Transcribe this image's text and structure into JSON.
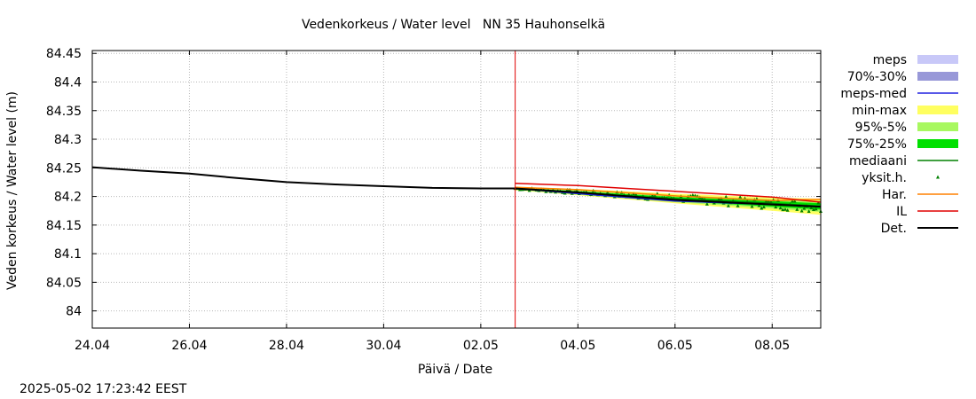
{
  "chart_data": {
    "type": "line",
    "title": "Vedenkorkeus / Water level   NN 35 Hauhonselkä",
    "xlabel": "Päivä / Date",
    "ylabel": "Veden korkeus / Water level (m)",
    "timestamp": "2025-05-02 17:23:42 EEST",
    "grid": true,
    "legend_position": "right",
    "xlim": [
      "2025-04-24",
      "2025-05-09"
    ],
    "ylim": [
      83.97,
      84.455
    ],
    "x_ticks": [
      "24.04",
      "26.04",
      "28.04",
      "30.04",
      "02.05",
      "04.05",
      "06.05",
      "08.05"
    ],
    "y_ticks": [
      "84.45",
      "84.4",
      "84.35",
      "84.3",
      "84.25",
      "84.2",
      "84.15",
      "84.1",
      "84.05",
      "84"
    ],
    "y_tick_values": [
      84.45,
      84.4,
      84.35,
      84.3,
      84.25,
      84.2,
      84.15,
      84.1,
      84.05,
      84.0
    ],
    "forecast_start": "2025-05-02T17:00",
    "legend": [
      {
        "label": "meps",
        "color": "#c8c8f8",
        "kind": "band"
      },
      {
        "label": "70%-30%",
        "color": "#9898d8",
        "kind": "band"
      },
      {
        "label": "meps-med",
        "color": "#2020e0",
        "kind": "line"
      },
      {
        "label": "min-max",
        "color": "#ffff60",
        "kind": "band"
      },
      {
        "label": "95%-5%",
        "color": "#a8f860",
        "kind": "band"
      },
      {
        "label": "75%-25%",
        "color": "#00e000",
        "kind": "band"
      },
      {
        "label": "mediaani",
        "color": "#008000",
        "kind": "line"
      },
      {
        "label": "yksit.h.",
        "color": "#008000",
        "kind": "point"
      },
      {
        "label": "Har.",
        "color": "#ff8000",
        "kind": "line"
      },
      {
        "label": "IL",
        "color": "#e00000",
        "kind": "line"
      },
      {
        "label": "Det.",
        "color": "#000000",
        "kind": "line"
      }
    ],
    "series": [
      {
        "name": "Det.",
        "color": "#000000",
        "x": [
          "2025-04-24",
          "2025-04-25",
          "2025-04-26",
          "2025-04-27",
          "2025-04-28",
          "2025-04-29",
          "2025-04-30",
          "2025-05-01",
          "2025-05-02",
          "2025-05-02T17:00",
          "2025-05-04",
          "2025-05-06",
          "2025-05-08",
          "2025-05-09"
        ],
        "y": [
          84.251,
          84.245,
          84.24,
          84.232,
          84.225,
          84.221,
          84.218,
          84.215,
          84.214,
          84.214,
          84.207,
          84.194,
          84.186,
          84.182
        ]
      },
      {
        "name": "IL",
        "color": "#e00000",
        "x": [
          "2025-05-02T17:00",
          "2025-05-04",
          "2025-05-06",
          "2025-05-08",
          "2025-05-09"
        ],
        "y": [
          84.223,
          84.219,
          84.209,
          84.199,
          84.19
        ]
      },
      {
        "name": "Har.",
        "color": "#ff8000",
        "x": [
          "2025-05-02T17:00",
          "2025-05-04",
          "2025-05-06",
          "2025-05-08",
          "2025-05-09"
        ],
        "y": [
          84.216,
          84.212,
          84.201,
          84.193,
          84.195
        ]
      },
      {
        "name": "meps-med",
        "color": "#2020e0",
        "x": [
          "2025-05-02T17:00",
          "2025-05-04",
          "2025-05-06",
          "2025-05-08",
          "2025-05-09"
        ],
        "y": [
          84.214,
          84.205,
          84.192,
          84.186,
          84.182
        ]
      },
      {
        "name": "mediaani",
        "color": "#008000",
        "x": [
          "2025-05-02T17:00",
          "2025-05-04",
          "2025-05-06",
          "2025-05-08",
          "2025-05-09"
        ],
        "y": [
          84.214,
          84.206,
          84.196,
          84.188,
          84.183
        ]
      }
    ],
    "bands": [
      {
        "name": "min-max",
        "color": "#ffff60",
        "x": [
          "2025-05-02T17:00",
          "2025-05-04",
          "2025-05-06",
          "2025-05-08",
          "2025-05-09"
        ],
        "low": [
          84.211,
          84.202,
          84.188,
          84.175,
          84.168
        ],
        "high": [
          84.217,
          84.213,
          84.205,
          84.198,
          84.196
        ]
      },
      {
        "name": "95%-5%",
        "color": "#a8f860",
        "x": [
          "2025-05-02T17:00",
          "2025-05-04",
          "2025-05-06",
          "2025-05-08",
          "2025-05-09"
        ],
        "low": [
          84.212,
          84.203,
          84.19,
          84.179,
          84.173
        ],
        "high": [
          84.216,
          84.211,
          84.202,
          84.195,
          84.192
        ]
      },
      {
        "name": "75%-25%",
        "color": "#00e000",
        "x": [
          "2025-05-02T17:00",
          "2025-05-04",
          "2025-05-06",
          "2025-05-08",
          "2025-05-09"
        ],
        "low": [
          84.213,
          84.204,
          84.192,
          84.182,
          84.177
        ],
        "high": [
          84.215,
          84.209,
          84.199,
          84.192,
          84.188
        ]
      }
    ],
    "members": {
      "name": "yksit.h.",
      "color": "#008000",
      "x": [
        "2025-05-02T17:00",
        "2025-05-09"
      ],
      "y_start": 84.214,
      "y_end": 84.182,
      "spread_start": 0.002,
      "spread_end": 0.011,
      "count": 130
    }
  }
}
